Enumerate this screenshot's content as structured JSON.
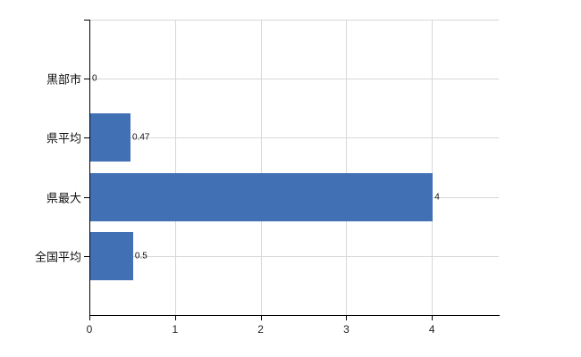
{
  "chart": {
    "background": "#ffffff",
    "bar_color": "#4270b5",
    "grid_color": "#d8d8d8",
    "axis_color": "#000000",
    "text_color": "#111111"
  },
  "chart_data": {
    "type": "bar",
    "orientation": "horizontal",
    "title": "",
    "xlabel": "",
    "ylabel": "",
    "categories": [
      "黒部市",
      "県平均",
      "県最大",
      "全国平均"
    ],
    "values": [
      0,
      0.47,
      4,
      0.5
    ],
    "data_labels": [
      "0",
      "0.47",
      "4",
      "0.5"
    ],
    "x_ticks": [
      0,
      1,
      2,
      3,
      4
    ],
    "x_tick_labels": [
      "0",
      "1",
      "2",
      "3",
      "4"
    ],
    "xlim": [
      0,
      4.78
    ],
    "grid": true,
    "legend": false
  }
}
